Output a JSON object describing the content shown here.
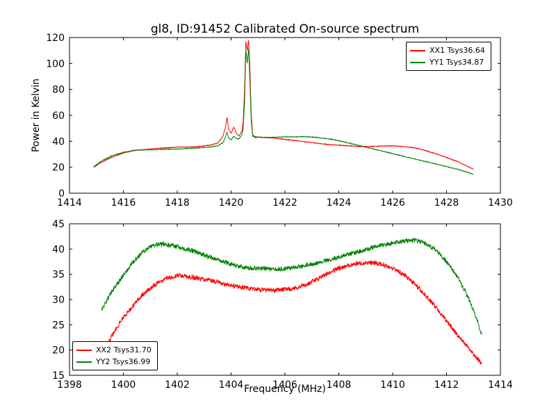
{
  "figure": {
    "background": "#ffffff",
    "axis_color": "#000000"
  },
  "chart_data": [
    {
      "type": "line",
      "title": "gl8, ID:91452 Calibrated On-source spectrum",
      "xlabel": "",
      "ylabel": "Power in Kelvin",
      "xlim": [
        1414,
        1430
      ],
      "ylim": [
        0,
        120
      ],
      "xticks": [
        1414,
        1416,
        1418,
        1420,
        1422,
        1424,
        1426,
        1428,
        1430
      ],
      "yticks": [
        0,
        20,
        40,
        60,
        80,
        100,
        120
      ],
      "grid": false,
      "legend_position": "top-right",
      "series": [
        {
          "name": "XX1 Tsys36.64",
          "color": "#ff0000",
          "x": [
            1414.9,
            1415.2,
            1415.6,
            1416.0,
            1416.4,
            1416.8,
            1417.2,
            1417.6,
            1418.0,
            1418.4,
            1418.8,
            1419.2,
            1419.5,
            1419.7,
            1419.8,
            1419.85,
            1419.9,
            1420.0,
            1420.1,
            1420.2,
            1420.3,
            1420.4,
            1420.45,
            1420.5,
            1420.55,
            1420.6,
            1420.65,
            1420.7,
            1420.75,
            1420.8,
            1420.9,
            1421.2,
            1421.6,
            1422.0,
            1422.4,
            1422.8,
            1423.2,
            1423.6,
            1424.0,
            1424.4,
            1424.8,
            1425.2,
            1425.6,
            1426.0,
            1426.4,
            1426.8,
            1427.2,
            1427.6,
            1428.0,
            1428.4,
            1428.8,
            1429.0
          ],
          "y": [
            20,
            24,
            28,
            31,
            33,
            33.5,
            34.5,
            35,
            35.5,
            35.5,
            36,
            37,
            38.5,
            44,
            52,
            59,
            50,
            46,
            51,
            46,
            44,
            48,
            55,
            80,
            117,
            110,
            118,
            95,
            60,
            45,
            43.5,
            43,
            42.5,
            41.5,
            40.5,
            39.5,
            38.5,
            37.5,
            37,
            36.5,
            36,
            36,
            36.3,
            36.5,
            36,
            35,
            33,
            30.5,
            27.5,
            24.5,
            20.5,
            18.5
          ]
        },
        {
          "name": "YY1 Tsys34.87",
          "color": "#008000",
          "x": [
            1414.9,
            1415.2,
            1415.6,
            1416.0,
            1416.4,
            1416.8,
            1417.2,
            1417.6,
            1418.0,
            1418.4,
            1418.8,
            1419.2,
            1419.5,
            1419.7,
            1419.8,
            1419.85,
            1419.9,
            1420.0,
            1420.1,
            1420.2,
            1420.3,
            1420.4,
            1420.45,
            1420.5,
            1420.55,
            1420.6,
            1420.65,
            1420.7,
            1420.75,
            1420.8,
            1420.9,
            1421.2,
            1421.6,
            1422.0,
            1422.4,
            1422.8,
            1423.2,
            1423.6,
            1424.0,
            1424.4,
            1424.8,
            1425.2,
            1425.6,
            1426.0,
            1426.4,
            1426.8,
            1427.2,
            1427.6,
            1428.0,
            1428.4,
            1428.8,
            1429.0
          ],
          "y": [
            20.5,
            25,
            29,
            31.5,
            33,
            33.5,
            33.5,
            34,
            34,
            34.5,
            35,
            35.5,
            36.5,
            39,
            44,
            47,
            43,
            41,
            44,
            42,
            42,
            45,
            50,
            70,
            110,
            100,
            112,
            85,
            55,
            44,
            43,
            43,
            43,
            43.5,
            43.5,
            43.5,
            43,
            42,
            40.5,
            38.5,
            36.5,
            34.5,
            32.5,
            30.5,
            28.5,
            26.5,
            24.5,
            22.5,
            20.5,
            18.5,
            16,
            14.5
          ]
        }
      ]
    },
    {
      "type": "line",
      "title": "",
      "xlabel": "Frequency (MHz)",
      "ylabel": "",
      "xlim": [
        1398,
        1414
      ],
      "ylim": [
        15,
        45
      ],
      "xticks": [
        1398,
        1400,
        1402,
        1404,
        1406,
        1408,
        1410,
        1412,
        1414
      ],
      "yticks": [
        15,
        20,
        25,
        30,
        35,
        40,
        45
      ],
      "grid": false,
      "legend_position": "bottom-left",
      "series": [
        {
          "name": "XX2 Tsys31.70",
          "color": "#ff0000",
          "x": [
            1399.3,
            1399.6,
            1400.0,
            1400.4,
            1400.8,
            1401.2,
            1401.6,
            1402.0,
            1402.4,
            1402.8,
            1403.2,
            1403.6,
            1404.0,
            1404.4,
            1404.8,
            1405.2,
            1405.6,
            1406.0,
            1406.4,
            1406.8,
            1407.2,
            1407.6,
            1408.0,
            1408.4,
            1408.8,
            1409.2,
            1409.6,
            1410.0,
            1410.4,
            1410.8,
            1411.2,
            1411.6,
            1412.0,
            1412.4,
            1412.8,
            1413.1,
            1413.3
          ],
          "y": [
            20,
            23,
            26.5,
            29,
            31.5,
            33,
            34.2,
            34.8,
            34.6,
            34.2,
            33.8,
            33.3,
            32.8,
            32.4,
            32.1,
            31.9,
            31.8,
            32,
            32.3,
            33,
            34,
            35.2,
            36.2,
            36.8,
            37.2,
            37.3,
            37,
            36.2,
            35,
            33.2,
            31,
            28.5,
            25.8,
            23,
            20.5,
            18.5,
            17.5
          ]
        },
        {
          "name": "YY2 Tsys36.99",
          "color": "#008000",
          "x": [
            1399.2,
            1399.5,
            1399.9,
            1400.3,
            1400.7,
            1401.0,
            1401.3,
            1401.6,
            1402.0,
            1402.4,
            1402.8,
            1403.2,
            1403.6,
            1404.0,
            1404.4,
            1404.8,
            1405.2,
            1405.6,
            1406.0,
            1406.4,
            1406.8,
            1407.2,
            1407.6,
            1408.0,
            1408.4,
            1408.8,
            1409.2,
            1409.6,
            1410.0,
            1410.4,
            1410.8,
            1411.2,
            1411.6,
            1412.0,
            1412.4,
            1412.8,
            1413.1,
            1413.3
          ],
          "y": [
            28,
            31,
            34,
            37,
            39.3,
            40.5,
            41,
            40.9,
            40.5,
            39.9,
            39.2,
            38.4,
            37.7,
            37,
            36.5,
            36.2,
            36.1,
            36,
            36.1,
            36.4,
            36.8,
            37.2,
            37.8,
            38.4,
            39,
            39.6,
            40.2,
            40.8,
            41.2,
            41.6,
            41.7,
            41.2,
            39.8,
            37.5,
            34.5,
            30.5,
            26.5,
            23
          ]
        }
      ]
    }
  ]
}
